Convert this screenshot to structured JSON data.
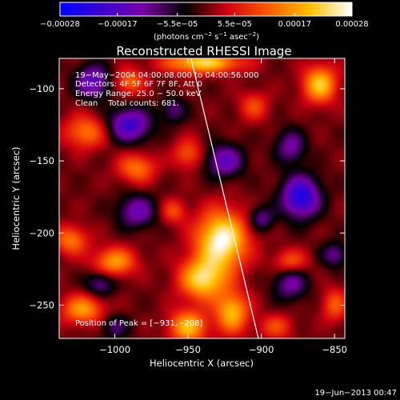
{
  "chart_data": {
    "type": "heatmap",
    "title": "Reconstructed RHESSI Image",
    "xlabel": "Heliocentric X (arcsec)",
    "ylabel": "Heliocentric Y (arcsec)",
    "xlim": [
      -1038,
      -843
    ],
    "ylim": [
      -273,
      -79
    ],
    "x_ticks": [
      -1000,
      -950,
      -900,
      -850
    ],
    "x_tick_labels": [
      "−1000",
      "−950",
      "−900",
      "−850"
    ],
    "y_ticks": [
      -100,
      -150,
      -200,
      -250
    ],
    "y_tick_labels": [
      "−100",
      "−150",
      "−200",
      "−250"
    ],
    "colorbar": {
      "min": -0.00028,
      "max": 0.00028,
      "ticks": [
        -0.00028,
        -0.00017,
        -5.5e-05,
        5.5e-05,
        0.00017,
        0.00028
      ],
      "tick_labels": [
        "−0.00028",
        "−0.00017",
        "−5.5e−05",
        "5.5e−05",
        "0.00017",
        "0.00028"
      ],
      "units_prefix": "(photons cm",
      "units_exp1": "−2",
      "units_mid": " s",
      "units_exp2": "−1",
      "units_mid2": " asec",
      "units_exp3": "−2",
      "units_suffix": ")",
      "colors": [
        "#0000ff",
        "#3b00d0",
        "#7800a6",
        "#000000",
        "#d10010",
        "#ff5a00",
        "#ffc000",
        "#ffffff"
      ]
    },
    "annotations": [
      "19−May−2004 04:00:08.000 to 04:00:56.000",
      "Detectors: 4F 5F 6F 7F 8F, Att 0",
      "Energy Range: 25.0 − 50.0 keV",
      "Clean    Total counts: 681."
    ],
    "peak_label": "Position of Peak = [−931,−208]",
    "peak_position": [
      -931,
      -208
    ],
    "limb_line": [
      [
        -948,
        -79
      ],
      [
        -902,
        -273
      ]
    ],
    "blobs": [
      {
        "x": -927,
        "y": -205,
        "sx": 12,
        "sy": 14,
        "a": 1.0
      },
      {
        "x": -940,
        "y": -232,
        "sx": 11,
        "sy": 10,
        "a": 0.8
      },
      {
        "x": -950,
        "y": -265,
        "sx": 9,
        "sy": 8,
        "a": 0.7
      },
      {
        "x": -920,
        "y": -255,
        "sx": 8,
        "sy": 10,
        "a": 0.7
      },
      {
        "x": -1022,
        "y": -253,
        "sx": 10,
        "sy": 7,
        "a": 0.6
      },
      {
        "x": -1000,
        "y": -220,
        "sx": 10,
        "sy": 7,
        "a": 0.6
      },
      {
        "x": -1030,
        "y": -205,
        "sx": 8,
        "sy": 7,
        "a": 0.5
      },
      {
        "x": -860,
        "y": -97,
        "sx": 8,
        "sy": 9,
        "a": 0.75
      },
      {
        "x": -940,
        "y": -82,
        "sx": 18,
        "sy": 5,
        "a": 0.8
      },
      {
        "x": -990,
        "y": -95,
        "sx": 7,
        "sy": 6,
        "a": 0.45
      },
      {
        "x": -1020,
        "y": -130,
        "sx": 10,
        "sy": 8,
        "a": 0.5
      },
      {
        "x": -985,
        "y": -155,
        "sx": 9,
        "sy": 7,
        "a": 0.5
      },
      {
        "x": -950,
        "y": -145,
        "sx": 7,
        "sy": 7,
        "a": 0.4
      },
      {
        "x": -905,
        "y": -112,
        "sx": 7,
        "sy": 7,
        "a": 0.35
      },
      {
        "x": -880,
        "y": -220,
        "sx": 8,
        "sy": 6,
        "a": 0.4
      },
      {
        "x": -850,
        "y": -250,
        "sx": 6,
        "sy": 8,
        "a": 0.4
      },
      {
        "x": -890,
        "y": -265,
        "sx": 8,
        "sy": 6,
        "a": 0.35
      },
      {
        "x": -960,
        "y": -185,
        "sx": 6,
        "sy": 6,
        "a": 0.35
      },
      {
        "x": -873,
        "y": -175,
        "sx": 9,
        "sy": 10,
        "a": -0.85
      },
      {
        "x": -990,
        "y": -125,
        "sx": 10,
        "sy": 8,
        "a": -0.7
      },
      {
        "x": -1015,
        "y": -95,
        "sx": 8,
        "sy": 8,
        "a": -0.6
      },
      {
        "x": -925,
        "y": -150,
        "sx": 9,
        "sy": 8,
        "a": -0.55
      },
      {
        "x": -985,
        "y": -185,
        "sx": 9,
        "sy": 8,
        "a": -0.5
      },
      {
        "x": -880,
        "y": -140,
        "sx": 7,
        "sy": 8,
        "a": -0.45
      },
      {
        "x": -880,
        "y": -235,
        "sx": 8,
        "sy": 8,
        "a": -0.45
      },
      {
        "x": -1010,
        "y": -235,
        "sx": 7,
        "sy": 6,
        "a": -0.4
      },
      {
        "x": -900,
        "y": -190,
        "sx": 6,
        "sy": 6,
        "a": -0.4
      },
      {
        "x": -850,
        "y": -215,
        "sx": 6,
        "sy": 6,
        "a": -0.4
      },
      {
        "x": -960,
        "y": -115,
        "sx": 6,
        "sy": 6,
        "a": -0.35
      },
      {
        "x": -1000,
        "y": -265,
        "sx": 7,
        "sy": 6,
        "a": -0.3
      }
    ]
  },
  "footer": {
    "timestamp": "19−Jun−2013 00:47"
  }
}
